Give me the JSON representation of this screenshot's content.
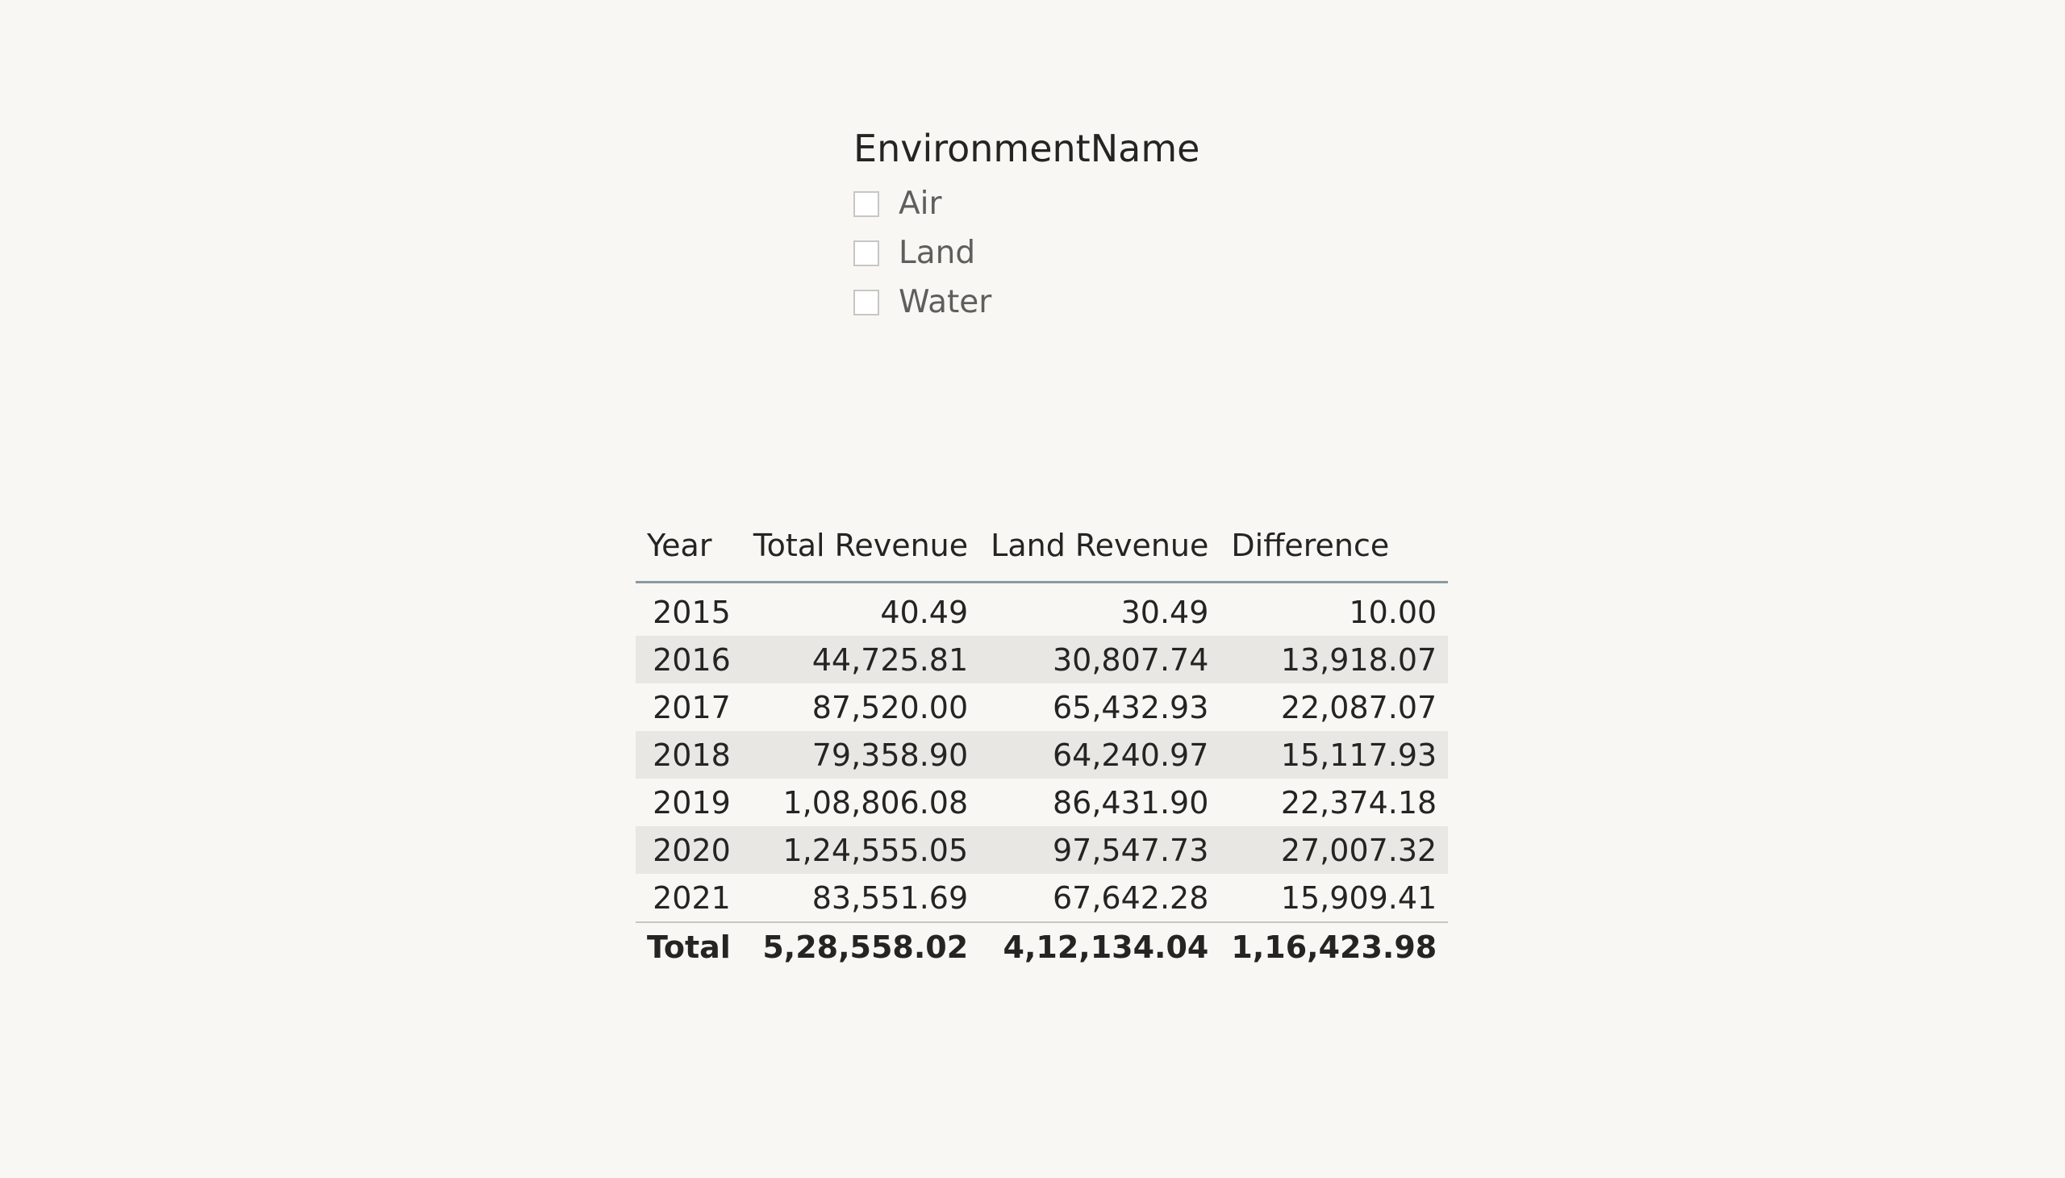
{
  "slicer": {
    "title": "EnvironmentName",
    "items": [
      {
        "label": "Air",
        "checked": false
      },
      {
        "label": "Land",
        "checked": false
      },
      {
        "label": "Water",
        "checked": false
      }
    ]
  },
  "table": {
    "headers": [
      "Year",
      "Total Revenue",
      "Land Revenue",
      "Difference"
    ],
    "rows": [
      [
        "2015",
        "40.49",
        "30.49",
        "10.00"
      ],
      [
        "2016",
        "44,725.81",
        "30,807.74",
        "13,918.07"
      ],
      [
        "2017",
        "87,520.00",
        "65,432.93",
        "22,087.07"
      ],
      [
        "2018",
        "79,358.90",
        "64,240.97",
        "15,117.93"
      ],
      [
        "2019",
        "1,08,806.08",
        "86,431.90",
        "22,374.18"
      ],
      [
        "2020",
        "1,24,555.05",
        "97,547.73",
        "27,007.32"
      ],
      [
        "2021",
        "83,551.69",
        "67,642.28",
        "15,909.41"
      ]
    ],
    "total": [
      "Total",
      "5,28,558.02",
      "4,12,134.04",
      "1,16,423.98"
    ]
  },
  "colors": {
    "background": "#f9f7f3",
    "row_band": "#e9e7e3",
    "header_rule": "#8a9aa2",
    "text": "#252423",
    "muted_text": "#605e5c",
    "checkbox_border": "#c8c6c4"
  }
}
